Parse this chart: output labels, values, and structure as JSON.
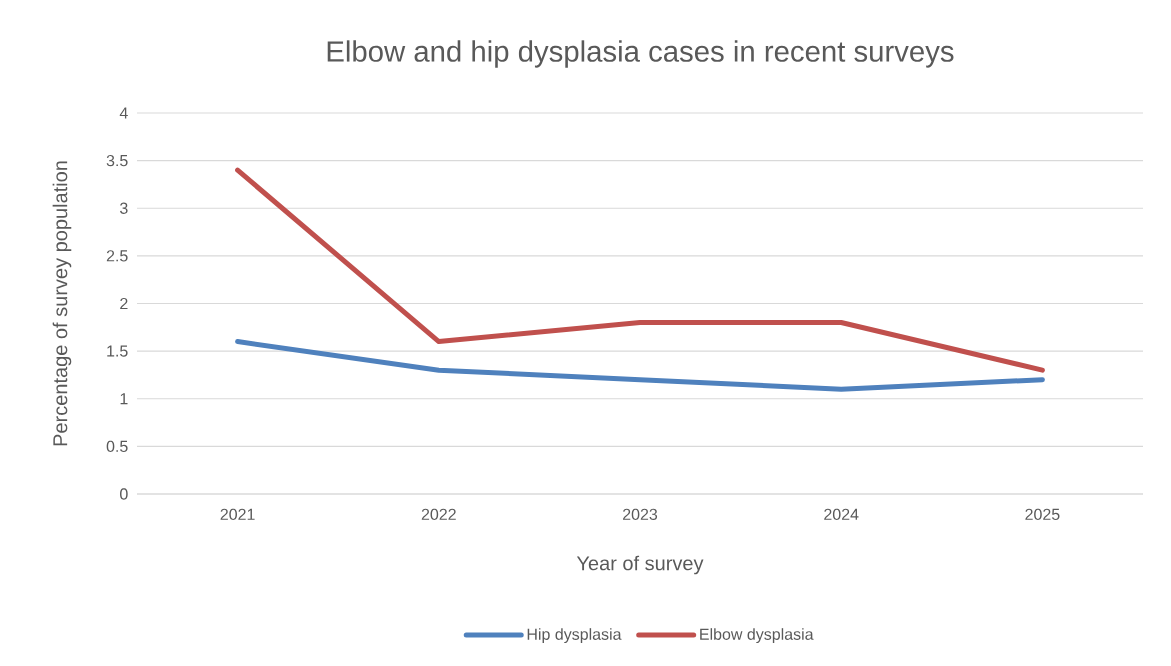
{
  "chart_data": {
    "type": "line",
    "title": "Elbow and hip dysplasia cases in recent surveys",
    "xlabel": "Year of survey",
    "ylabel": "Percentage of survey population",
    "categories": [
      "2021",
      "2022",
      "2023",
      "2024",
      "2025"
    ],
    "series": [
      {
        "name": "Hip dysplasia",
        "color": "#4f81bd",
        "values": [
          1.6,
          1.3,
          1.2,
          1.1,
          1.2
        ]
      },
      {
        "name": "Elbow dysplasia",
        "color": "#c0504d",
        "values": [
          3.4,
          1.6,
          1.8,
          1.8,
          1.3
        ]
      }
    ],
    "ylim": [
      0,
      4
    ],
    "yticks": [
      0,
      0.5,
      1,
      1.5,
      2,
      2.5,
      3,
      3.5,
      4
    ],
    "grid": "y",
    "legend": "bottom",
    "marker": "none",
    "line_style": "solid"
  }
}
